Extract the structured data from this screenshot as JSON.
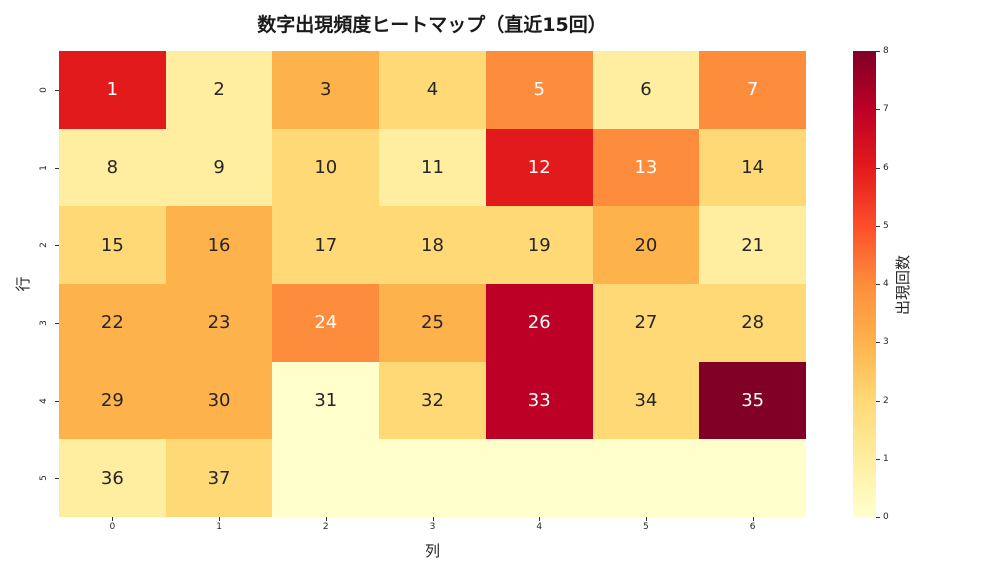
{
  "chart_data": {
    "type": "heatmap",
    "title": "数字出現頻度ヒートマップ（直近15回）",
    "xlabel": "列",
    "ylabel": "行",
    "x_ticks": [
      "0",
      "1",
      "2",
      "3",
      "4",
      "5",
      "6"
    ],
    "y_ticks": [
      "0",
      "1",
      "2",
      "3",
      "4",
      "5"
    ],
    "colormap": "YlOrRd",
    "vmin": 0,
    "vmax": 8,
    "colorbar_label": "出現回数",
    "colorbar_ticks": [
      "0",
      "1",
      "2",
      "3",
      "4",
      "5",
      "6",
      "7",
      "8"
    ],
    "annotations": [
      [
        "1",
        "2",
        "3",
        "4",
        "5",
        "6",
        "7"
      ],
      [
        "8",
        "9",
        "10",
        "11",
        "12",
        "13",
        "14"
      ],
      [
        "15",
        "16",
        "17",
        "18",
        "19",
        "20",
        "21"
      ],
      [
        "22",
        "23",
        "24",
        "25",
        "26",
        "27",
        "28"
      ],
      [
        "29",
        "30",
        "31",
        "32",
        "33",
        "34",
        "35"
      ],
      [
        "36",
        "37",
        "",
        "",
        "",
        "",
        ""
      ]
    ],
    "values": [
      [
        6,
        1,
        3,
        2,
        4,
        1,
        4
      ],
      [
        1,
        1,
        2,
        1,
        6,
        4,
        2
      ],
      [
        2,
        3,
        2,
        2,
        2,
        3,
        1
      ],
      [
        3,
        3,
        4,
        3,
        7,
        2,
        2
      ],
      [
        3,
        3,
        0,
        2,
        7,
        2,
        8
      ],
      [
        1,
        2,
        0,
        0,
        0,
        0,
        0
      ]
    ]
  },
  "palette": [
    "#ffffcc",
    "#ffeda0",
    "#fed976",
    "#feb24c",
    "#fd8d3c",
    "#fc4e2a",
    "#e31a1c",
    "#bd0026",
    "#800026"
  ]
}
